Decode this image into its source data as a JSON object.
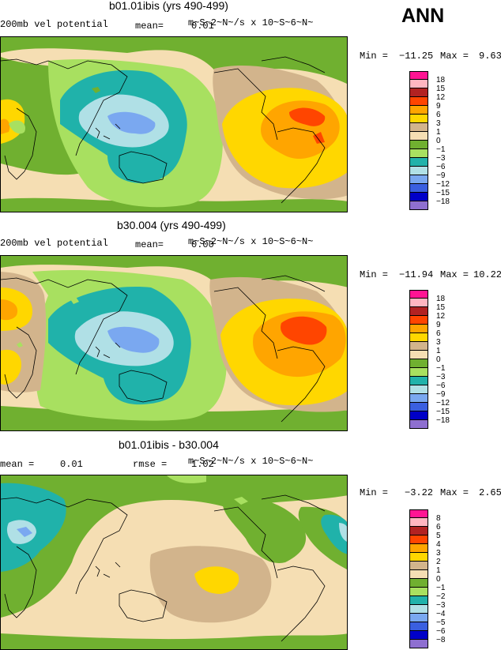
{
  "header": {
    "season": "ANN"
  },
  "panels": [
    {
      "title": "b01.01ibis (yrs 490-499)",
      "field": "200mb vel potential",
      "mean_label": "mean=",
      "mean_value": "0.01",
      "units": "m~S~2~N~/s x 10~S~6~N~",
      "min_label": "Min =",
      "min_value": "−11.25",
      "max_label": "Max =",
      "max_value": "9.63",
      "levels": [
        "18",
        "15",
        "12",
        "9",
        "6",
        "3",
        "1",
        "0",
        "−1",
        "−3",
        "−6",
        "−9",
        "−12",
        "−15",
        "−18"
      ]
    },
    {
      "title": "b30.004 (yrs 490-499)",
      "field": "200mb vel potential",
      "mean_label": "mean=",
      "mean_value": "0.00",
      "units": "m~S~2~N~/s x 10~S~6~N~",
      "min_label": "Min =",
      "min_value": "−11.94",
      "max_label": "Max =",
      "max_value": "10.22",
      "levels": [
        "18",
        "15",
        "12",
        "9",
        "6",
        "3",
        "1",
        "0",
        "−1",
        "−3",
        "−6",
        "−9",
        "−12",
        "−15",
        "−18"
      ]
    },
    {
      "title": "b01.01ibis - b30.004",
      "mean_label": "mean =",
      "mean_value": "0.01",
      "rmse_label": "rmse =",
      "rmse_value": "1.02",
      "units": "m~S~2~N~/s x 10~S~6~N~",
      "min_label": "Min =",
      "min_value": "−3.22",
      "max_label": "Max =",
      "max_value": "2.65",
      "levels": [
        "8",
        "6",
        "5",
        "4",
        "3",
        "2",
        "1",
        "0",
        "−1",
        "−2",
        "−3",
        "−4",
        "−5",
        "−6",
        "−8"
      ]
    }
  ],
  "colors": {
    "scale": [
      "#8e6fd0",
      "#0000c8",
      "#3a5fe0",
      "#7aa8f0",
      "#b0e0e6",
      "#20b2aa",
      "#a8e060",
      "#70b030",
      "#f5deb3",
      "#d2b48c",
      "#ffd700",
      "#ffa500",
      "#ff4500",
      "#b22222",
      "#ffb6c1",
      "#ff1493"
    ],
    "ocean_bg": "#f5deb3",
    "coast": "#000000"
  }
}
